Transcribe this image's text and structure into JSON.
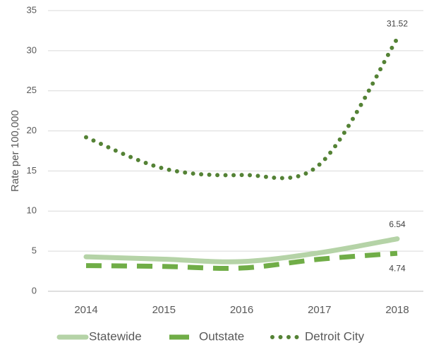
{
  "chart_data": {
    "type": "line",
    "y_label": "Rate per 100,000",
    "categories": [
      "2014",
      "2015",
      "2016",
      "2017",
      "2018"
    ],
    "series": [
      {
        "name": "Statewide",
        "color": "#b5d3a7",
        "style": "solid",
        "values": [
          4.3,
          4.0,
          3.7,
          4.8,
          6.54
        ]
      },
      {
        "name": "Outstate",
        "color": "#70ad47",
        "style": "dashed",
        "values": [
          3.2,
          3.1,
          2.9,
          4.0,
          4.74
        ]
      },
      {
        "name": "Detroit City",
        "color": "#548235",
        "style": "dotted",
        "values": [
          19.2,
          15.3,
          14.5,
          15.8,
          31.52
        ]
      }
    ],
    "ylim": [
      0,
      35
    ],
    "yticks": [
      0,
      5,
      10,
      15,
      20,
      25,
      30,
      35
    ],
    "grid": true,
    "legend": "bottom"
  }
}
